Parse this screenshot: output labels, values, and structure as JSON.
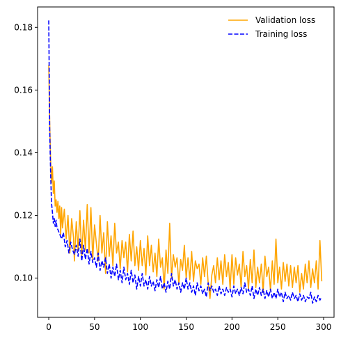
{
  "chart_data": {
    "type": "line",
    "title": "",
    "xlabel": "",
    "ylabel": "",
    "xlim": [
      -12.2,
      311.4
    ],
    "ylim": [
      0.0875,
      0.1865
    ],
    "xticks": [
      0,
      50,
      100,
      150,
      200,
      250,
      300
    ],
    "yticks": [
      0.1,
      0.12,
      0.14,
      0.16,
      0.18
    ],
    "xtick_labels": [
      "0",
      "50",
      "100",
      "150",
      "200",
      "250",
      "300"
    ],
    "ytick_labels": [
      "0.10",
      "0.12",
      "0.14",
      "0.16",
      "0.18"
    ],
    "grid": false,
    "legend_position": "top-right",
    "series": [
      {
        "name": "Validation loss",
        "color": "#ffa500",
        "style": "solid",
        "points": [
          [
            0,
            0.168
          ],
          [
            1,
            0.15
          ],
          [
            2,
            0.138
          ],
          [
            3,
            0.1305
          ],
          [
            4,
            0.1355
          ],
          [
            5,
            0.127
          ],
          [
            6,
            0.131
          ],
          [
            7,
            0.123
          ],
          [
            8,
            0.125
          ],
          [
            9,
            0.121
          ],
          [
            10,
            0.1245
          ],
          [
            11,
            0.119
          ],
          [
            12,
            0.123
          ],
          [
            13,
            0.114
          ],
          [
            14,
            0.1225
          ],
          [
            15,
            0.116
          ],
          [
            17,
            0.122
          ],
          [
            19,
            0.1125
          ],
          [
            21,
            0.12
          ],
          [
            23,
            0.108
          ],
          [
            25,
            0.119
          ],
          [
            27,
            0.113
          ],
          [
            28,
            0.1055
          ],
          [
            30,
            0.118
          ],
          [
            32,
            0.109
          ],
          [
            34,
            0.1215
          ],
          [
            36,
            0.107
          ],
          [
            38,
            0.1185
          ],
          [
            40,
            0.109
          ],
          [
            42,
            0.1235
          ],
          [
            44,
            0.108
          ],
          [
            46,
            0.1225
          ],
          [
            48,
            0.106
          ],
          [
            50,
            0.117
          ],
          [
            52,
            0.111
          ],
          [
            54,
            0.1055
          ],
          [
            56,
            0.12
          ],
          [
            58,
            0.108
          ],
          [
            60,
            0.1145
          ],
          [
            62,
            0.1015
          ],
          [
            64,
            0.118
          ],
          [
            66,
            0.107
          ],
          [
            68,
            0.1135
          ],
          [
            70,
            0.104
          ],
          [
            72,
            0.1175
          ],
          [
            74,
            0.108
          ],
          [
            76,
            0.1115
          ],
          [
            78,
            0.103
          ],
          [
            80,
            0.112
          ],
          [
            82,
            0.1065
          ],
          [
            84,
            0.1115
          ],
          [
            86,
            0.102
          ],
          [
            88,
            0.114
          ],
          [
            90,
            0.1055
          ],
          [
            92,
            0.115
          ],
          [
            94,
            0.104
          ],
          [
            96,
            0.11
          ],
          [
            98,
            0.1025
          ],
          [
            100,
            0.112
          ],
          [
            102,
            0.104
          ],
          [
            104,
            0.1095
          ],
          [
            106,
            0.101
          ],
          [
            108,
            0.1135
          ],
          [
            110,
            0.104
          ],
          [
            112,
            0.1105
          ],
          [
            114,
            0.102
          ],
          [
            116,
            0.108
          ],
          [
            118,
            0.1005
          ],
          [
            120,
            0.1125
          ],
          [
            122,
            0.1035
          ],
          [
            124,
            0.1065
          ],
          [
            126,
            0.0965
          ],
          [
            128,
            0.109
          ],
          [
            130,
            0.1015
          ],
          [
            132,
            0.1175
          ],
          [
            134,
            0.1
          ],
          [
            136,
            0.1075
          ],
          [
            138,
            0.1035
          ],
          [
            140,
            0.1065
          ],
          [
            142,
            0.098
          ],
          [
            144,
            0.106
          ],
          [
            146,
            0.1025
          ],
          [
            148,
            0.1105
          ],
          [
            150,
            0.1
          ],
          [
            152,
            0.1065
          ],
          [
            154,
            0.0995
          ],
          [
            156,
            0.1085
          ],
          [
            158,
            0.099
          ],
          [
            160,
            0.1055
          ],
          [
            162,
            0.103
          ],
          [
            164,
            0.1045
          ],
          [
            166,
            0.098
          ],
          [
            168,
            0.1065
          ],
          [
            170,
            0.1005
          ],
          [
            172,
            0.107
          ],
          [
            174,
            0.0985
          ],
          [
            176,
            0.0935
          ],
          [
            178,
            0.101
          ],
          [
            180,
            0.104
          ],
          [
            182,
            0.0985
          ],
          [
            184,
            0.1065
          ],
          [
            186,
            0.0995
          ],
          [
            188,
            0.1055
          ],
          [
            190,
            0.098
          ],
          [
            192,
            0.1075
          ],
          [
            194,
            0.1005
          ],
          [
            196,
            0.105
          ],
          [
            198,
            0.0965
          ],
          [
            200,
            0.1075
          ],
          [
            202,
            0.098
          ],
          [
            204,
            0.1065
          ],
          [
            206,
            0.101
          ],
          [
            208,
            0.1045
          ],
          [
            210,
            0.097
          ],
          [
            212,
            0.1085
          ],
          [
            214,
            0.1005
          ],
          [
            216,
            0.104
          ],
          [
            218,
            0.0965
          ],
          [
            220,
            0.106
          ],
          [
            222,
            0.0985
          ],
          [
            224,
            0.109
          ],
          [
            226,
            0.097
          ],
          [
            228,
            0.1035
          ],
          [
            230,
            0.0985
          ],
          [
            232,
            0.1045
          ],
          [
            234,
            0.0955
          ],
          [
            236,
            0.107
          ],
          [
            238,
            0.1005
          ],
          [
            240,
            0.1035
          ],
          [
            242,
            0.096
          ],
          [
            244,
            0.1055
          ],
          [
            246,
            0.098
          ],
          [
            248,
            0.1125
          ],
          [
            250,
            0.0985
          ],
          [
            252,
            0.1035
          ],
          [
            254,
            0.0965
          ],
          [
            256,
            0.105
          ],
          [
            258,
            0.099
          ],
          [
            260,
            0.1045
          ],
          [
            262,
            0.0975
          ],
          [
            264,
            0.104
          ],
          [
            266,
            0.097
          ],
          [
            268,
            0.1035
          ],
          [
            270,
            0.0985
          ],
          [
            272,
            0.104
          ],
          [
            274,
            0.0955
          ],
          [
            276,
            0.1015
          ],
          [
            278,
            0.0965
          ],
          [
            280,
            0.1045
          ],
          [
            282,
            0.0985
          ],
          [
            284,
            0.1055
          ],
          [
            286,
            0.097
          ],
          [
            288,
            0.103
          ],
          [
            290,
            0.0985
          ],
          [
            292,
            0.1055
          ],
          [
            294,
            0.0965
          ],
          [
            296,
            0.112
          ],
          [
            298,
            0.099
          ]
        ]
      },
      {
        "name": "Training loss",
        "color": "#0000ff",
        "style": "dashed",
        "points": [
          [
            0,
            0.1822
          ],
          [
            1,
            0.148
          ],
          [
            2,
            0.134
          ],
          [
            3,
            0.124
          ],
          [
            4,
            0.121
          ],
          [
            5,
            0.1175
          ],
          [
            6,
            0.119
          ],
          [
            7,
            0.1165
          ],
          [
            8,
            0.1185
          ],
          [
            9,
            0.116
          ],
          [
            10,
            0.1155
          ],
          [
            12,
            0.114
          ],
          [
            14,
            0.1125
          ],
          [
            16,
            0.1145
          ],
          [
            18,
            0.11
          ],
          [
            20,
            0.112
          ],
          [
            22,
            0.108
          ],
          [
            24,
            0.1115
          ],
          [
            26,
            0.109
          ],
          [
            28,
            0.1075
          ],
          [
            30,
            0.1105
          ],
          [
            32,
            0.107
          ],
          [
            34,
            0.1125
          ],
          [
            36,
            0.1055
          ],
          [
            38,
            0.1105
          ],
          [
            40,
            0.106
          ],
          [
            42,
            0.1095
          ],
          [
            44,
            0.1045
          ],
          [
            46,
            0.1085
          ],
          [
            48,
            0.105
          ],
          [
            50,
            0.1065
          ],
          [
            52,
            0.1035
          ],
          [
            54,
            0.108
          ],
          [
            56,
            0.1025
          ],
          [
            58,
            0.1055
          ],
          [
            60,
            0.1035
          ],
          [
            62,
            0.1065
          ],
          [
            64,
            0.1015
          ],
          [
            66,
            0.1045
          ],
          [
            68,
            0.1
          ],
          [
            70,
            0.1035
          ],
          [
            72,
            0.1005
          ],
          [
            74,
            0.1045
          ],
          [
            76,
            0.0995
          ],
          [
            78,
            0.1025
          ],
          [
            80,
            0.0985
          ],
          [
            82,
            0.1035
          ],
          [
            84,
            0.0995
          ],
          [
            86,
            0.1015
          ],
          [
            88,
            0.098
          ],
          [
            90,
            0.1025
          ],
          [
            92,
            0.0985
          ],
          [
            94,
            0.101
          ],
          [
            96,
            0.0965
          ],
          [
            98,
            0.1005
          ],
          [
            100,
            0.0975
          ],
          [
            102,
            0.1015
          ],
          [
            104,
            0.0975
          ],
          [
            106,
            0.0995
          ],
          [
            108,
            0.0965
          ],
          [
            110,
            0.1005
          ],
          [
            112,
            0.0975
          ],
          [
            114,
            0.099
          ],
          [
            116,
            0.096
          ],
          [
            118,
            0.0995
          ],
          [
            120,
            0.097
          ],
          [
            122,
            0.1005
          ],
          [
            124,
            0.0965
          ],
          [
            126,
            0.0985
          ],
          [
            128,
            0.0955
          ],
          [
            130,
            0.099
          ],
          [
            132,
            0.0965
          ],
          [
            134,
            0.1015
          ],
          [
            136,
            0.0975
          ],
          [
            138,
            0.0995
          ],
          [
            140,
            0.0965
          ],
          [
            142,
            0.0985
          ],
          [
            144,
            0.0955
          ],
          [
            146,
            0.0985
          ],
          [
            148,
            0.0965
          ],
          [
            150,
            0.1
          ],
          [
            152,
            0.0965
          ],
          [
            154,
            0.0985
          ],
          [
            156,
            0.0955
          ],
          [
            158,
            0.0975
          ],
          [
            160,
            0.0945
          ],
          [
            162,
            0.0985
          ],
          [
            164,
            0.096
          ],
          [
            166,
            0.0975
          ],
          [
            168,
            0.095
          ],
          [
            170,
            0.0965
          ],
          [
            172,
            0.094
          ],
          [
            174,
            0.0985
          ],
          [
            176,
            0.096
          ],
          [
            178,
            0.0975
          ],
          [
            180,
            0.0955
          ],
          [
            182,
            0.0965
          ],
          [
            184,
            0.0945
          ],
          [
            186,
            0.0975
          ],
          [
            188,
            0.095
          ],
          [
            190,
            0.0965
          ],
          [
            192,
            0.0945
          ],
          [
            194,
            0.097
          ],
          [
            196,
            0.0955
          ],
          [
            198,
            0.0965
          ],
          [
            200,
            0.094
          ],
          [
            202,
            0.0975
          ],
          [
            204,
            0.095
          ],
          [
            206,
            0.0965
          ],
          [
            208,
            0.0945
          ],
          [
            210,
            0.097
          ],
          [
            212,
            0.095
          ],
          [
            214,
            0.0985
          ],
          [
            216,
            0.0955
          ],
          [
            218,
            0.0965
          ],
          [
            220,
            0.0945
          ],
          [
            222,
            0.0975
          ],
          [
            224,
            0.0935
          ],
          [
            226,
            0.0965
          ],
          [
            228,
            0.0945
          ],
          [
            230,
            0.097
          ],
          [
            232,
            0.0945
          ],
          [
            234,
            0.0965
          ],
          [
            236,
            0.0935
          ],
          [
            238,
            0.096
          ],
          [
            240,
            0.094
          ],
          [
            242,
            0.0965
          ],
          [
            244,
            0.0935
          ],
          [
            246,
            0.0955
          ],
          [
            248,
            0.0935
          ],
          [
            250,
            0.0965
          ],
          [
            252,
            0.094
          ],
          [
            254,
            0.0955
          ],
          [
            256,
            0.0925
          ],
          [
            258,
            0.0955
          ],
          [
            260,
            0.0935
          ],
          [
            262,
            0.0945
          ],
          [
            264,
            0.093
          ],
          [
            266,
            0.0955
          ],
          [
            268,
            0.0935
          ],
          [
            270,
            0.0945
          ],
          [
            272,
            0.0925
          ],
          [
            274,
            0.095
          ],
          [
            276,
            0.093
          ],
          [
            278,
            0.0945
          ],
          [
            280,
            0.0925
          ],
          [
            282,
            0.094
          ],
          [
            284,
            0.0935
          ],
          [
            286,
            0.0955
          ],
          [
            288,
            0.092
          ],
          [
            290,
            0.094
          ],
          [
            292,
            0.0925
          ],
          [
            294,
            0.0945
          ],
          [
            296,
            0.093
          ],
          [
            298,
            0.094
          ]
        ]
      }
    ]
  }
}
